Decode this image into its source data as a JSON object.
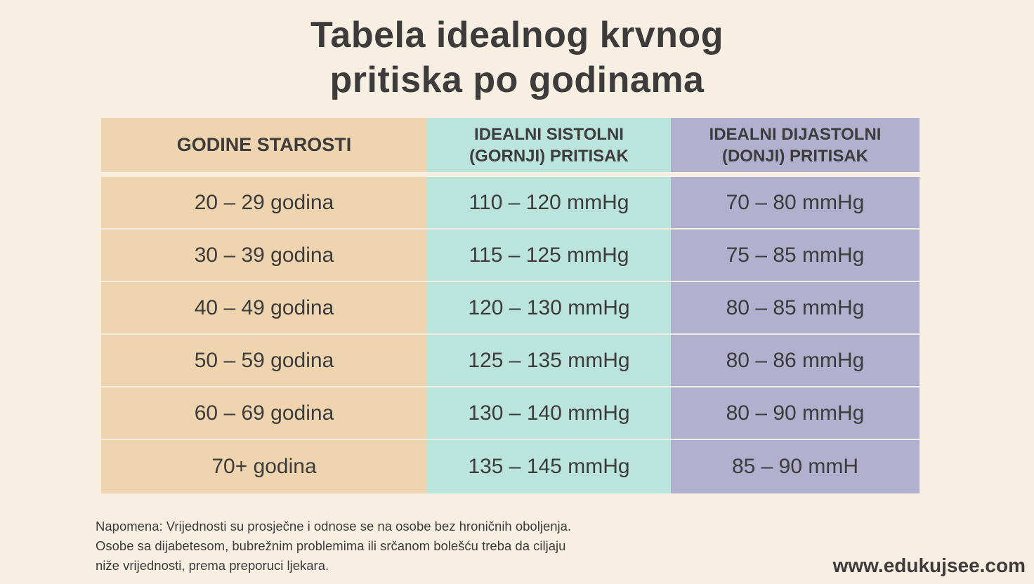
{
  "title_line1": "Tabela idealnog krvnog",
  "title_line2": "pritiska po godinama",
  "table": {
    "headers": {
      "age": "GODINE STAROSTI",
      "systolic_line1": "IDEALNI SISTOLNI",
      "systolic_line2": "(GORNJI) PRITISAK",
      "diastolic_line1": "IDEALNI DIJASTOLNI",
      "diastolic_line2": "(DONJI) PRITISAK"
    },
    "rows": [
      {
        "age": "20 – 29 godina",
        "systolic": "110 – 120 mmHg",
        "diastolic": "70 – 80 mmHg"
      },
      {
        "age": "30 – 39 godina",
        "systolic": "115 – 125 mmHg",
        "diastolic": "75 – 85 mmHg"
      },
      {
        "age": "40 – 49 godina",
        "systolic": "120 – 130 mmHg",
        "diastolic": "80 – 85 mmHg"
      },
      {
        "age": "50 – 59 godina",
        "systolic": "125 – 135 mmHg",
        "diastolic": "80 – 86 mmHg"
      },
      {
        "age": "60 – 69 godina",
        "systolic": "130 – 140 mmHg",
        "diastolic": "80 – 90 mmHg"
      },
      {
        "age": "70+ godina",
        "systolic": "135 – 145 mmHg",
        "diastolic": "85 – 90 mmH"
      }
    ],
    "colors": {
      "age": "#efd4b0",
      "systolic": "#bbe5dc",
      "diastolic": "#b1b0cf"
    }
  },
  "note": {
    "line1": "Napomena: Vrijednosti su prosječne i odnose se na osobe bez hroničnih oboljenja.",
    "line2": "Osobe sa dijabetesom, bubrežnim problemima ili srčanom bolešću treba da ciljaju",
    "line3": "niže vrijednosti, prema preporuci ljekara."
  },
  "website": "www.edukujsee.com"
}
